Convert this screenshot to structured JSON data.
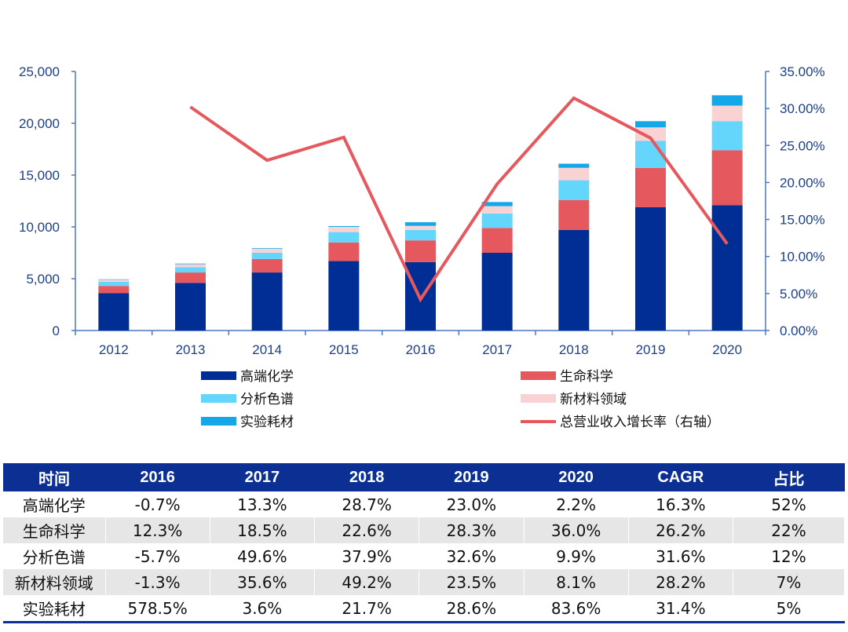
{
  "chart_data": {
    "type": "bar",
    "stacked": true,
    "categories": [
      "2012",
      "2013",
      "2014",
      "2015",
      "2016",
      "2017",
      "2018",
      "2019",
      "2020"
    ],
    "series": [
      {
        "name": "高端化学",
        "color": "#002e94",
        "values": [
          3600,
          4600,
          5600,
          6700,
          6600,
          7500,
          9700,
          11900,
          12100
        ]
      },
      {
        "name": "生命科学",
        "color": "#e5585e",
        "values": [
          700,
          1000,
          1300,
          1800,
          2100,
          2400,
          2900,
          3800,
          5300
        ]
      },
      {
        "name": "分析色谱",
        "color": "#64d6fc",
        "values": [
          400,
          500,
          600,
          1000,
          1000,
          1400,
          1900,
          2600,
          2800
        ]
      },
      {
        "name": "新材料领域",
        "color": "#f9d2d4",
        "values": [
          200,
          300,
          400,
          500,
          400,
          700,
          1200,
          1300,
          1500
        ]
      },
      {
        "name": "实验耗材",
        "color": "#14a8e8",
        "values": [
          40,
          60,
          60,
          80,
          350,
          400,
          400,
          600,
          1000
        ]
      }
    ],
    "line": {
      "name": "总营业收入增长率（右轴）",
      "color": "#e5585e",
      "categories": [
        "2013",
        "2014",
        "2015",
        "2016",
        "2017",
        "2018",
        "2019",
        "2020"
      ],
      "values": [
        30.2,
        23.0,
        26.1,
        4.2,
        19.8,
        31.4,
        26.0,
        11.7
      ]
    },
    "y_left": {
      "ticks": [
        "0",
        "5,000",
        "10,000",
        "15,000",
        "20,000",
        "25,000"
      ],
      "ylim": [
        0,
        25000
      ]
    },
    "y_right": {
      "ticks": [
        "0.00%",
        "5.00%",
        "10.00%",
        "15.00%",
        "20.00%",
        "25.00%",
        "30.00%",
        "35.00%"
      ],
      "ylim": [
        0,
        35
      ]
    },
    "legend": [
      {
        "label": "高端化学",
        "kind": "bar",
        "color": "#002e94"
      },
      {
        "label": "生命科学",
        "kind": "bar",
        "color": "#e5585e"
      },
      {
        "label": "分析色谱",
        "kind": "bar",
        "color": "#64d6fc"
      },
      {
        "label": "新材料领域",
        "kind": "bar",
        "color": "#f9d2d4"
      },
      {
        "label": "实验耗材",
        "kind": "bar",
        "color": "#14a8e8"
      },
      {
        "label": "总营业收入增长率（右轴）",
        "kind": "line",
        "color": "#e5585e"
      }
    ]
  },
  "table": {
    "headers": [
      "时间",
      "2016",
      "2017",
      "2018",
      "2019",
      "2020",
      "CAGR",
      "占比"
    ],
    "rows": [
      [
        "高端化学",
        "-0.7%",
        "13.3%",
        "28.7%",
        "23.0%",
        "2.2%",
        "16.3%",
        "52%"
      ],
      [
        "生命科学",
        "12.3%",
        "18.5%",
        "22.6%",
        "28.3%",
        "36.0%",
        "26.2%",
        "22%"
      ],
      [
        "分析色谱",
        "-5.7%",
        "49.6%",
        "37.9%",
        "32.6%",
        "9.9%",
        "31.6%",
        "12%"
      ],
      [
        "新材料领域",
        "-1.3%",
        "35.6%",
        "49.2%",
        "23.5%",
        "8.1%",
        "28.2%",
        "7%"
      ],
      [
        "实验耗材",
        "578.5%",
        "3.6%",
        "21.7%",
        "28.6%",
        "83.6%",
        "31.4%",
        "5%"
      ]
    ]
  }
}
